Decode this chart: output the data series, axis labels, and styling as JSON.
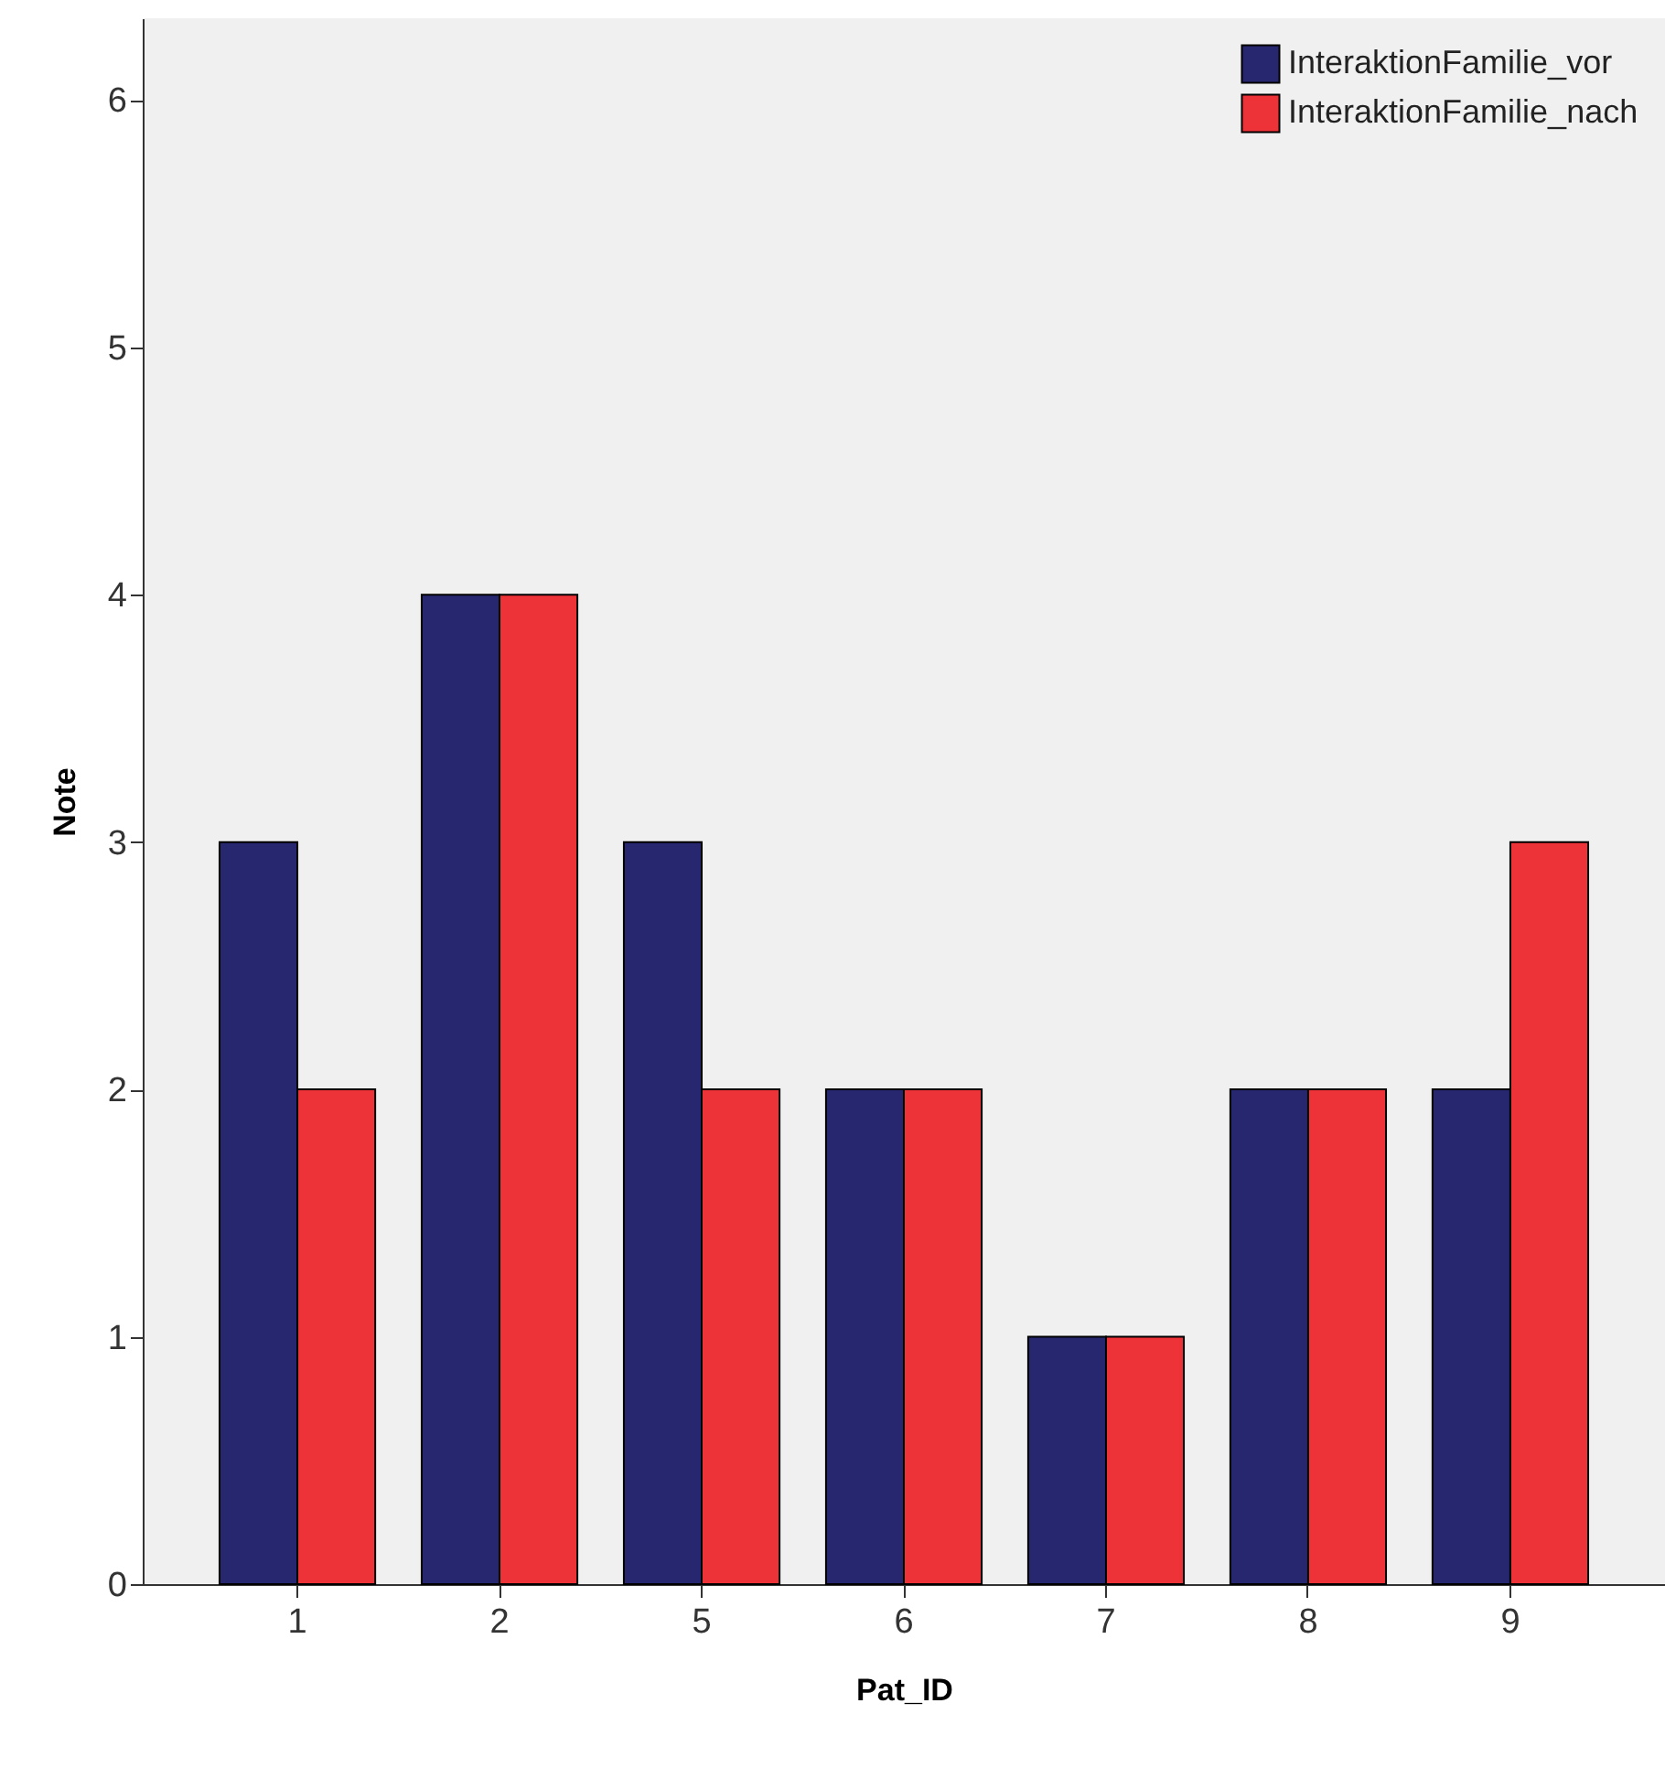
{
  "chart_data": {
    "type": "bar",
    "xlabel": "Pat_ID",
    "ylabel": "Note",
    "categories": [
      "1",
      "2",
      "5",
      "6",
      "7",
      "8",
      "9"
    ],
    "series": [
      {
        "name": "InteraktionFamilie_vor",
        "color": "#27276f",
        "values": [
          3,
          4,
          3,
          2,
          1,
          2,
          2
        ]
      },
      {
        "name": "InteraktionFamilie_nach",
        "color": "#ee3338",
        "values": [
          2,
          4,
          2,
          2,
          1,
          2,
          3
        ]
      }
    ],
    "ylim": [
      0,
      6.33
    ],
    "yticks": [
      0,
      1,
      2,
      3,
      4,
      5,
      6
    ],
    "grid": false,
    "legend": "top right"
  }
}
